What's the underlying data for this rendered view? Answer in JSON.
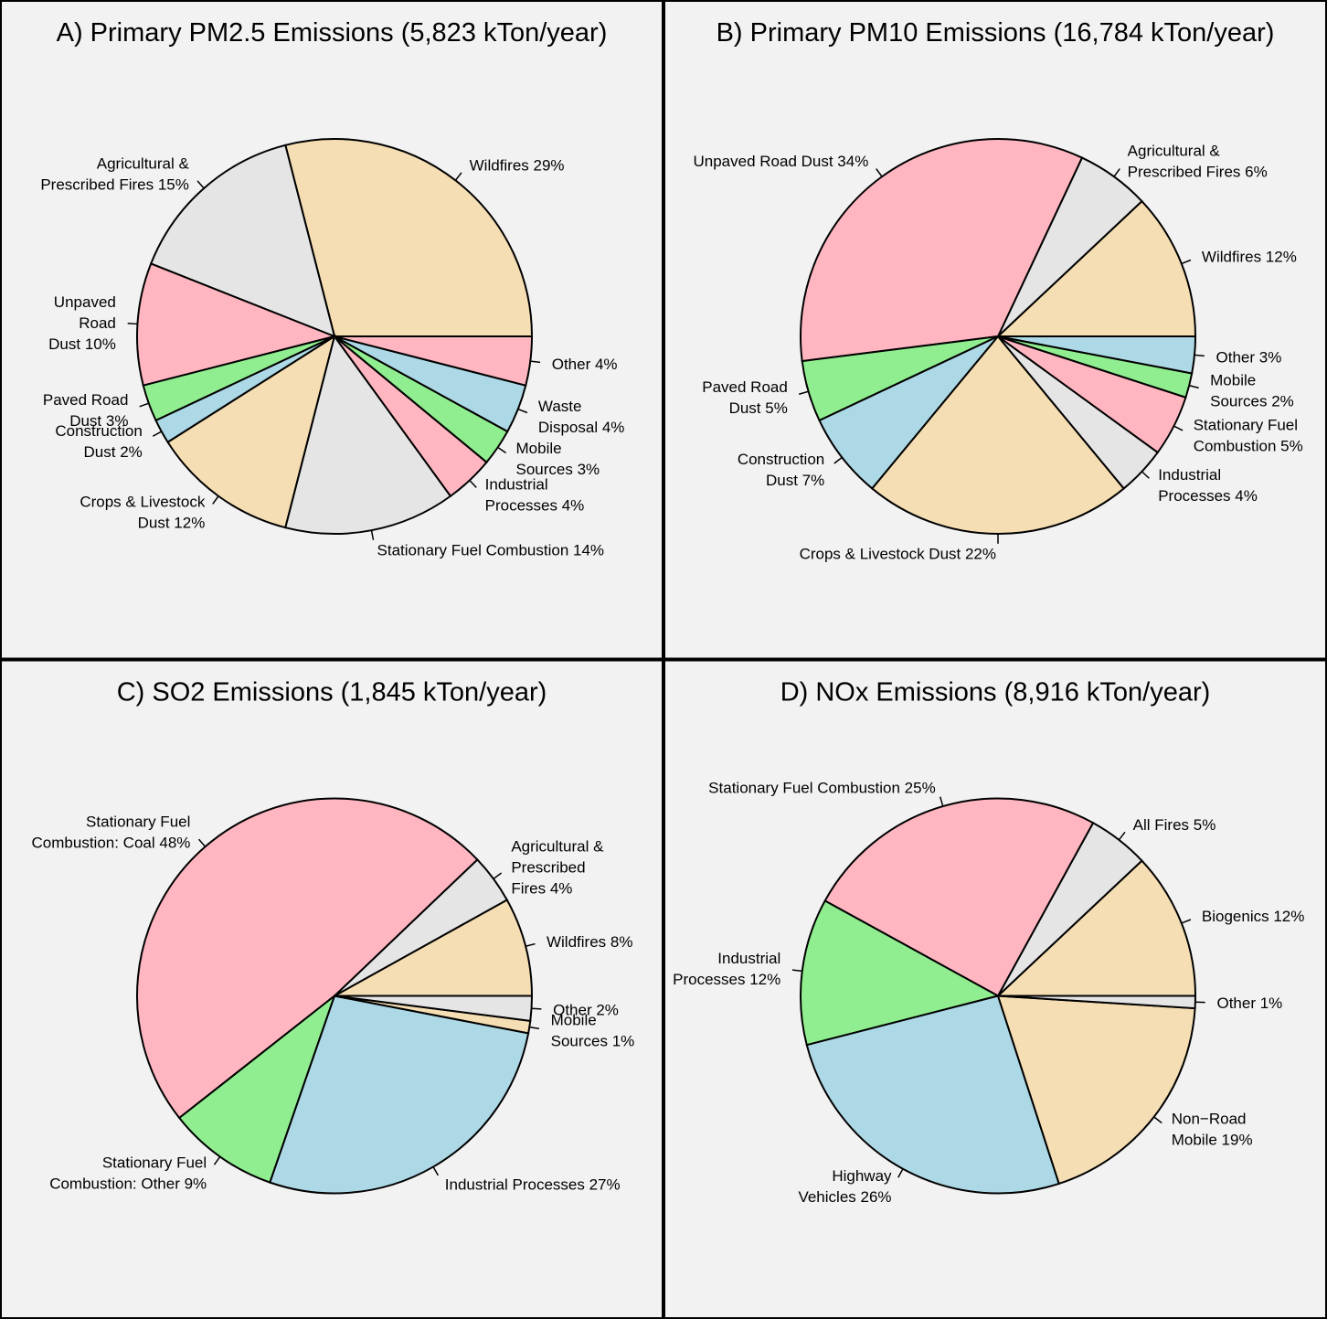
{
  "chart_data": [
    {
      "type": "pie",
      "title": "A) Primary PM2.5 Emissions (5,823 kTon/year)",
      "categories": [
        [
          "Wildfires 29%"
        ],
        [
          "Agricultural &",
          "Prescribed Fires 15%"
        ],
        [
          "Unpaved",
          "Road",
          "Dust 10%"
        ],
        [
          "Paved Road",
          "Dust 3%"
        ],
        [
          "Construction",
          "Dust 2%"
        ],
        [
          "Crops & Livestock",
          "Dust 12%"
        ],
        [
          "Stationary Fuel Combustion 14%"
        ],
        [
          "Industrial",
          "Processes 4%"
        ],
        [
          "Mobile",
          "Sources 3%"
        ],
        [
          "Waste",
          "Disposal 4%"
        ],
        [
          "Other 4%"
        ]
      ],
      "values": [
        29,
        15,
        10,
        3,
        2,
        12,
        14,
        4,
        3,
        4,
        4
      ],
      "colors": [
        "#f5deb3",
        "#e5e5e5",
        "#ffb6c1",
        "#90ee90",
        "#add8e6",
        "#f5deb3",
        "#e5e5e5",
        "#ffb6c1",
        "#90ee90",
        "#add8e6",
        "#ffb6c1"
      ]
    },
    {
      "type": "pie",
      "title": "B) Primary PM10 Emissions (16,784 kTon/year)",
      "categories": [
        [
          "Wildfires 12%"
        ],
        [
          "Agricultural &",
          "Prescribed Fires 6%"
        ],
        [
          "Unpaved Road Dust 34%"
        ],
        [
          "Paved Road",
          "Dust 5%"
        ],
        [
          "Construction",
          "Dust 7%"
        ],
        [
          "Crops & Livestock Dust 22%"
        ],
        [
          "Industrial",
          "Processes 4%"
        ],
        [
          "Stationary Fuel",
          "Combustion 5%"
        ],
        [
          "Mobile",
          "Sources 2%"
        ],
        [
          "Other 3%"
        ]
      ],
      "values": [
        12,
        6,
        34,
        5,
        7,
        22,
        4,
        5,
        2,
        3
      ],
      "colors": [
        "#f5deb3",
        "#e5e5e5",
        "#ffb6c1",
        "#90ee90",
        "#add8e6",
        "#f5deb3",
        "#e5e5e5",
        "#ffb6c1",
        "#90ee90",
        "#add8e6"
      ]
    },
    {
      "type": "pie",
      "title": "C) SO2 Emissions (1,845 kTon/year)",
      "categories": [
        [
          "Wildfires 8%"
        ],
        [
          "Agricultural &",
          "Prescribed",
          "Fires 4%"
        ],
        [
          "Stationary Fuel",
          "Combustion: Coal 48%"
        ],
        [
          "Stationary Fuel",
          "Combustion: Other 9%"
        ],
        [
          "Industrial Processes 27%"
        ],
        [
          "Mobile",
          "Sources 1%"
        ],
        [
          "Other 2%"
        ]
      ],
      "values": [
        8,
        4,
        48,
        9,
        27,
        1,
        2
      ],
      "colors": [
        "#f5deb3",
        "#e5e5e5",
        "#ffb6c1",
        "#90ee90",
        "#add8e6",
        "#f5deb3",
        "#e5e5e5"
      ]
    },
    {
      "type": "pie",
      "title": "D) NOx Emissions (8,916 kTon/year)",
      "categories": [
        [
          "Biogenics 12%"
        ],
        [
          "All Fires 5%"
        ],
        [
          "Stationary Fuel Combustion 25%"
        ],
        [
          "Industrial",
          "Processes 12%"
        ],
        [
          "Highway",
          "Vehicles 26%"
        ],
        [
          "Non−Road",
          "Mobile 19%"
        ],
        [
          "Other 1%"
        ]
      ],
      "values": [
        12,
        5,
        25,
        12,
        26,
        19,
        1
      ],
      "colors": [
        "#f5deb3",
        "#e5e5e5",
        "#ffb6c1",
        "#90ee90",
        "#add8e6",
        "#f5deb3",
        "#e5e5e5"
      ]
    }
  ]
}
